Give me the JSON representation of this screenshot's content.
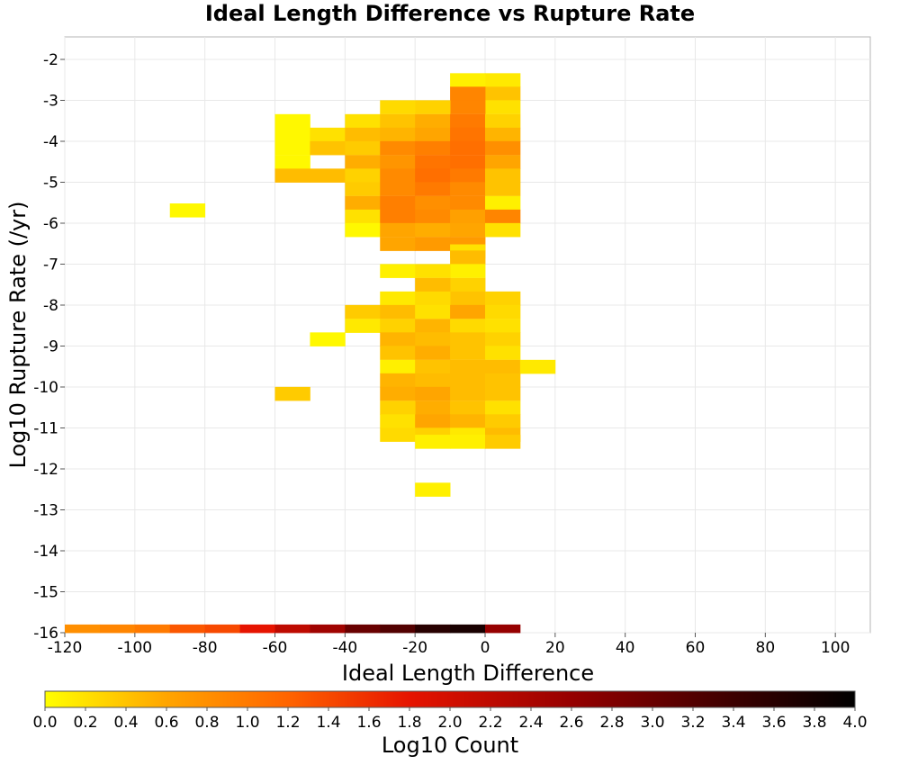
{
  "chart_data": {
    "type": "heatmap",
    "title": "Ideal Length Difference vs Rupture Rate",
    "xlabel": "Ideal Length Difference",
    "ylabel": "Log10 Rupture Rate (/yr)",
    "xlim": [
      -120,
      110
    ],
    "ylim": [
      -16,
      -1.5
    ],
    "x_ticks": [
      "-120",
      "-100",
      "-80",
      "-60",
      "-40",
      "-20",
      "0",
      "20",
      "40",
      "60",
      "80",
      "100"
    ],
    "x_tick_values": [
      -120,
      -100,
      -80,
      -60,
      -40,
      -20,
      0,
      20,
      40,
      60,
      80,
      100
    ],
    "y_ticks": [
      "-2",
      "-3",
      "-4",
      "-5",
      "-6",
      "-7",
      "-8",
      "-9",
      "-10",
      "-11",
      "-12",
      "-13",
      "-14",
      "-15",
      "-16"
    ],
    "y_tick_values": [
      -2,
      -3,
      -4,
      -5,
      -6,
      -7,
      -8,
      -9,
      -10,
      -11,
      -12,
      -13,
      -14,
      -15,
      -16
    ],
    "grid": true,
    "x_bin_width": 10,
    "y_bin_height": 0.333,
    "colorbar": {
      "label": "Log10 Count",
      "min": 0.0,
      "max": 4.0,
      "ticks": [
        "0.0",
        "0.2",
        "0.4",
        "0.6",
        "0.8",
        "1.0",
        "1.2",
        "1.4",
        "1.6",
        "1.8",
        "2.0",
        "2.2",
        "2.4",
        "2.6",
        "2.8",
        "3.0",
        "3.2",
        "3.4",
        "3.6",
        "3.8",
        "4.0"
      ],
      "tick_values": [
        0,
        0.2,
        0.4,
        0.6,
        0.8,
        1.0,
        1.2,
        1.4,
        1.6,
        1.8,
        2.0,
        2.2,
        2.4,
        2.6,
        2.8,
        3.0,
        3.2,
        3.4,
        3.6,
        3.8,
        4.0
      ],
      "colors": [
        "#ffff00",
        "#ffa500",
        "#ff6400",
        "#e61400",
        "#960000",
        "#3c0000",
        "#000000"
      ]
    },
    "cells": [
      {
        "x0": 0,
        "y0": -2.67,
        "v": 0.15
      },
      {
        "x0": -10,
        "y0": -2.67,
        "v": 0.1
      },
      {
        "x0": 0,
        "y0": -3,
        "v": 0.4
      },
      {
        "x0": -10,
        "y0": -3,
        "v": 0.9
      },
      {
        "x0": 0,
        "y0": -3.33,
        "v": 0.2
      },
      {
        "x0": -10,
        "y0": -3.33,
        "v": 0.9
      },
      {
        "x0": -20,
        "y0": -3.33,
        "v": 0.3
      },
      {
        "x0": -30,
        "y0": -3.33,
        "v": 0.25
      },
      {
        "x0": -60,
        "y0": -3.67,
        "v": 0.05
      },
      {
        "x0": -40,
        "y0": -3.67,
        "v": 0.2
      },
      {
        "x0": -30,
        "y0": -3.67,
        "v": 0.4
      },
      {
        "x0": -20,
        "y0": -3.67,
        "v": 0.55
      },
      {
        "x0": -10,
        "y0": -3.67,
        "v": 1.0
      },
      {
        "x0": 0,
        "y0": -3.67,
        "v": 0.3
      },
      {
        "x0": -60,
        "y0": -4,
        "v": 0.05
      },
      {
        "x0": -50,
        "y0": -4,
        "v": 0.2
      },
      {
        "x0": -40,
        "y0": -4,
        "v": 0.45
      },
      {
        "x0": -30,
        "y0": -4,
        "v": 0.5
      },
      {
        "x0": -20,
        "y0": -4,
        "v": 0.6
      },
      {
        "x0": -10,
        "y0": -4,
        "v": 1.05
      },
      {
        "x0": 0,
        "y0": -4,
        "v": 0.5
      },
      {
        "x0": -60,
        "y0": -4.33,
        "v": 0.05
      },
      {
        "x0": -50,
        "y0": -4.33,
        "v": 0.4
      },
      {
        "x0": -40,
        "y0": -4.33,
        "v": 0.35
      },
      {
        "x0": -30,
        "y0": -4.33,
        "v": 0.85
      },
      {
        "x0": -20,
        "y0": -4.33,
        "v": 0.95
      },
      {
        "x0": -10,
        "y0": -4.33,
        "v": 1.1
      },
      {
        "x0": 0,
        "y0": -4.33,
        "v": 0.8
      },
      {
        "x0": -60,
        "y0": -4.67,
        "v": 0.05
      },
      {
        "x0": -40,
        "y0": -4.67,
        "v": 0.55
      },
      {
        "x0": -30,
        "y0": -4.67,
        "v": 0.75
      },
      {
        "x0": -20,
        "y0": -4.67,
        "v": 1.05
      },
      {
        "x0": -10,
        "y0": -4.67,
        "v": 1.1
      },
      {
        "x0": 0,
        "y0": -4.67,
        "v": 0.6
      },
      {
        "x0": -60,
        "y0": -5,
        "v": 0.45
      },
      {
        "x0": -50,
        "y0": -5,
        "v": 0.45
      },
      {
        "x0": -40,
        "y0": -5,
        "v": 0.3
      },
      {
        "x0": -30,
        "y0": -5,
        "v": 0.85
      },
      {
        "x0": -20,
        "y0": -5,
        "v": 1.1
      },
      {
        "x0": -10,
        "y0": -5,
        "v": 1.0
      },
      {
        "x0": 0,
        "y0": -5,
        "v": 0.4
      },
      {
        "x0": -40,
        "y0": -5.33,
        "v": 0.35
      },
      {
        "x0": -30,
        "y0": -5.33,
        "v": 0.85
      },
      {
        "x0": -20,
        "y0": -5.33,
        "v": 1.0
      },
      {
        "x0": -10,
        "y0": -5.33,
        "v": 0.85
      },
      {
        "x0": 0,
        "y0": -5.33,
        "v": 0.4
      },
      {
        "x0": -40,
        "y0": -5.67,
        "v": 0.55
      },
      {
        "x0": -30,
        "y0": -5.67,
        "v": 0.95
      },
      {
        "x0": -20,
        "y0": -5.67,
        "v": 0.8
      },
      {
        "x0": -10,
        "y0": -5.67,
        "v": 0.85
      },
      {
        "x0": 0,
        "y0": -5.67,
        "v": 0.1
      },
      {
        "x0": -90,
        "y0": -5.85,
        "v": 0.05
      },
      {
        "x0": -40,
        "y0": -6,
        "v": 0.2
      },
      {
        "x0": -30,
        "y0": -6,
        "v": 0.95
      },
      {
        "x0": -20,
        "y0": -6,
        "v": 0.85
      },
      {
        "x0": -10,
        "y0": -6,
        "v": 0.65
      },
      {
        "x0": 0,
        "y0": -6,
        "v": 0.9
      },
      {
        "x0": -40,
        "y0": -6.33,
        "v": 0.05
      },
      {
        "x0": -30,
        "y0": -6.33,
        "v": 0.6
      },
      {
        "x0": -20,
        "y0": -6.33,
        "v": 0.55
      },
      {
        "x0": -10,
        "y0": -6.33,
        "v": 0.6
      },
      {
        "x0": 0,
        "y0": -6.33,
        "v": 0.2
      },
      {
        "x0": -30,
        "y0": -6.67,
        "v": 0.6
      },
      {
        "x0": -20,
        "y0": -6.67,
        "v": 0.7
      },
      {
        "x0": -10,
        "y0": -6.67,
        "v": 0.7
      },
      {
        "x0": -10,
        "y0": -6.85,
        "v": 0.2
      },
      {
        "x0": -10,
        "y0": -7,
        "v": 0.45
      },
      {
        "x0": -10,
        "y0": -7.33,
        "v": 0.1
      },
      {
        "x0": -30,
        "y0": -7.33,
        "v": 0.1
      },
      {
        "x0": -20,
        "y0": -7.33,
        "v": 0.2
      },
      {
        "x0": -10,
        "y0": -7.67,
        "v": 0.3
      },
      {
        "x0": -20,
        "y0": -7.67,
        "v": 0.45
      },
      {
        "x0": -10,
        "y0": -8,
        "v": 0.4
      },
      {
        "x0": -30,
        "y0": -8,
        "v": 0.15
      },
      {
        "x0": -20,
        "y0": -8,
        "v": 0.25
      },
      {
        "x0": 0,
        "y0": -8,
        "v": 0.3
      },
      {
        "x0": -40,
        "y0": -8.33,
        "v": 0.35
      },
      {
        "x0": -30,
        "y0": -8.33,
        "v": 0.45
      },
      {
        "x0": -20,
        "y0": -8.33,
        "v": 0.2
      },
      {
        "x0": -10,
        "y0": -8.33,
        "v": 0.6
      },
      {
        "x0": 0,
        "y0": -8.33,
        "v": 0.25
      },
      {
        "x0": -40,
        "y0": -8.67,
        "v": 0.15
      },
      {
        "x0": -30,
        "y0": -8.67,
        "v": 0.3
      },
      {
        "x0": -20,
        "y0": -8.67,
        "v": 0.5
      },
      {
        "x0": -10,
        "y0": -8.67,
        "v": 0.25
      },
      {
        "x0": 0,
        "y0": -8.67,
        "v": 0.2
      },
      {
        "x0": -50,
        "y0": -9,
        "v": 0.05
      },
      {
        "x0": -30,
        "y0": -9,
        "v": 0.5
      },
      {
        "x0": -20,
        "y0": -9,
        "v": 0.45
      },
      {
        "x0": -10,
        "y0": -9,
        "v": 0.4
      },
      {
        "x0": 0,
        "y0": -9,
        "v": 0.3
      },
      {
        "x0": -30,
        "y0": -9.33,
        "v": 0.4
      },
      {
        "x0": -20,
        "y0": -9.33,
        "v": 0.55
      },
      {
        "x0": -10,
        "y0": -9.33,
        "v": 0.4
      },
      {
        "x0": 0,
        "y0": -9.33,
        "v": 0.2
      },
      {
        "x0": -30,
        "y0": -9.67,
        "v": 0.1
      },
      {
        "x0": -20,
        "y0": -9.67,
        "v": 0.4
      },
      {
        "x0": -10,
        "y0": -9.67,
        "v": 0.45
      },
      {
        "x0": 0,
        "y0": -9.67,
        "v": 0.45
      },
      {
        "x0": 10,
        "y0": -9.67,
        "v": 0.15
      },
      {
        "x0": -30,
        "y0": -10,
        "v": 0.5
      },
      {
        "x0": -20,
        "y0": -10,
        "v": 0.45
      },
      {
        "x0": -10,
        "y0": -10,
        "v": 0.45
      },
      {
        "x0": 0,
        "y0": -10,
        "v": 0.4
      },
      {
        "x0": -60,
        "y0": -10.33,
        "v": 0.35
      },
      {
        "x0": -30,
        "y0": -10.33,
        "v": 0.55
      },
      {
        "x0": -20,
        "y0": -10.33,
        "v": 0.6
      },
      {
        "x0": -10,
        "y0": -10.33,
        "v": 0.45
      },
      {
        "x0": 0,
        "y0": -10.33,
        "v": 0.4
      },
      {
        "x0": -20,
        "y0": -10.67,
        "v": 0.55
      },
      {
        "x0": -10,
        "y0": -10.67,
        "v": 0.4
      },
      {
        "x0": -30,
        "y0": -10.67,
        "v": 0.3
      },
      {
        "x0": 0,
        "y0": -10.67,
        "v": 0.2
      },
      {
        "x0": -30,
        "y0": -11,
        "v": 0.2
      },
      {
        "x0": -20,
        "y0": -11,
        "v": 0.6
      },
      {
        "x0": -10,
        "y0": -11,
        "v": 0.5
      },
      {
        "x0": 0,
        "y0": -11,
        "v": 0.35
      },
      {
        "x0": -30,
        "y0": -11.33,
        "v": 0.25
      },
      {
        "x0": -20,
        "y0": -11.33,
        "v": 0.3
      },
      {
        "x0": -10,
        "y0": -11.33,
        "v": 0.15
      },
      {
        "x0": 0,
        "y0": -11.33,
        "v": 0.45
      },
      {
        "x0": -20,
        "y0": -11.5,
        "v": 0.1
      },
      {
        "x0": -10,
        "y0": -11.5,
        "v": 0.1
      },
      {
        "x0": 0,
        "y0": -11.5,
        "v": 0.35
      },
      {
        "x0": -20,
        "y0": -12.67,
        "v": 0.1
      },
      {
        "x0": -120,
        "y0": -16,
        "v": 0.8
      },
      {
        "x0": -110,
        "y0": -16,
        "v": 0.9
      },
      {
        "x0": -100,
        "y0": -16,
        "v": 1.0
      },
      {
        "x0": -90,
        "y0": -16,
        "v": 1.3
      },
      {
        "x0": -80,
        "y0": -16,
        "v": 1.4
      },
      {
        "x0": -70,
        "y0": -16,
        "v": 1.8
      },
      {
        "x0": -60,
        "y0": -16,
        "v": 2.2
      },
      {
        "x0": -50,
        "y0": -16,
        "v": 2.5
      },
      {
        "x0": -40,
        "y0": -16,
        "v": 3.0
      },
      {
        "x0": -30,
        "y0": -16,
        "v": 3.2
      },
      {
        "x0": -20,
        "y0": -16,
        "v": 3.6
      },
      {
        "x0": -10,
        "y0": -16,
        "v": 3.75
      },
      {
        "x0": 0,
        "y0": -16,
        "v": 2.6
      }
    ]
  }
}
